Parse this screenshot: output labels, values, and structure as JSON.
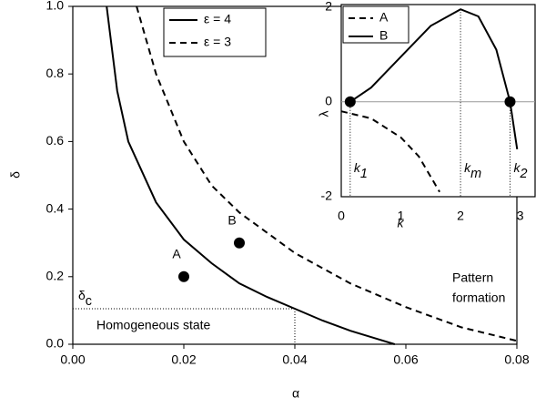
{
  "chart_data": [
    {
      "type": "line",
      "xlabel": "α",
      "ylabel": "δ",
      "xlim": [
        0,
        0.08
      ],
      "ylim": [
        0,
        1
      ],
      "xticks": [
        {
          "value": 0,
          "label": "0.00"
        },
        {
          "value": 0.02,
          "label": "0.02"
        },
        {
          "value": 0.04,
          "label": "0.04"
        },
        {
          "value": 0.06,
          "label": "0.06"
        },
        {
          "value": 0.08,
          "label": "0.08"
        }
      ],
      "yticks": [
        {
          "value": 0,
          "label": "0.0"
        },
        {
          "value": 0.2,
          "label": "0.2"
        },
        {
          "value": 0.4,
          "label": "0.4"
        },
        {
          "value": 0.6,
          "label": "0.6"
        },
        {
          "value": 0.8,
          "label": "0.8"
        },
        {
          "value": 1,
          "label": "1.0"
        }
      ],
      "legend": "upper left",
      "series": [
        {
          "name": "ε = 4",
          "color": "#000000",
          "dash": "none",
          "x": [
            0.0061,
            0.008,
            0.01,
            0.015,
            0.02,
            0.025,
            0.03,
            0.035,
            0.04,
            0.045,
            0.05,
            0.055,
            0.058
          ],
          "values": [
            1.0,
            0.75,
            0.6,
            0.42,
            0.31,
            0.24,
            0.18,
            0.14,
            0.105,
            0.07,
            0.04,
            0.015,
            0
          ]
        },
        {
          "name": "ε = 3",
          "color": "#000000",
          "dash": "7,5",
          "x": [
            0.0115,
            0.015,
            0.02,
            0.025,
            0.03,
            0.04,
            0.05,
            0.06,
            0.07,
            0.08
          ],
          "values": [
            1.0,
            0.8,
            0.6,
            0.47,
            0.39,
            0.27,
            0.18,
            0.11,
            0.05,
            0.01
          ]
        }
      ],
      "points": [
        {
          "label": "A",
          "x": 0.02,
          "y": 0.2
        },
        {
          "label": "B",
          "x": 0.03,
          "y": 0.3
        }
      ],
      "threshold": {
        "symbol": "δ",
        "sub": "c",
        "x": 0.04,
        "y": 0.105
      },
      "region_labels": {
        "homogeneous": "Homogeneous state",
        "pattern": [
          "Pattern",
          "formation"
        ]
      }
    },
    {
      "type": "line",
      "xlabel": "k",
      "ylabel": "λ",
      "xlim": [
        0,
        3.25
      ],
      "ylim": [
        -2,
        2.05
      ],
      "xticks": [
        0,
        1,
        2,
        3
      ],
      "yticks": [
        -2,
        0,
        2
      ],
      "legend": "upper left",
      "series": [
        {
          "name": "A",
          "color": "#000000",
          "dash": "7,5",
          "x": [
            0,
            0.5,
            1.0,
            1.3,
            1.65
          ],
          "values": [
            -0.2,
            -0.35,
            -0.75,
            -1.15,
            -1.9
          ]
        },
        {
          "name": "B",
          "color": "#000000",
          "dash": "none",
          "x": [
            0.15,
            0.5,
            1.0,
            1.5,
            2.0,
            2.3,
            2.6,
            2.83,
            2.95
          ],
          "values": [
            0,
            0.3,
            0.95,
            1.6,
            1.95,
            1.8,
            1.1,
            0,
            -1.0
          ]
        }
      ],
      "marked_k": [
        {
          "symbol": "k",
          "sub": "1",
          "value": 0.15,
          "y": 0
        },
        {
          "symbol": "k",
          "sub": "m",
          "value": 2.0,
          "y": 1.95
        },
        {
          "symbol": "k",
          "sub": "2",
          "value": 2.83,
          "y": 0
        }
      ]
    }
  ]
}
